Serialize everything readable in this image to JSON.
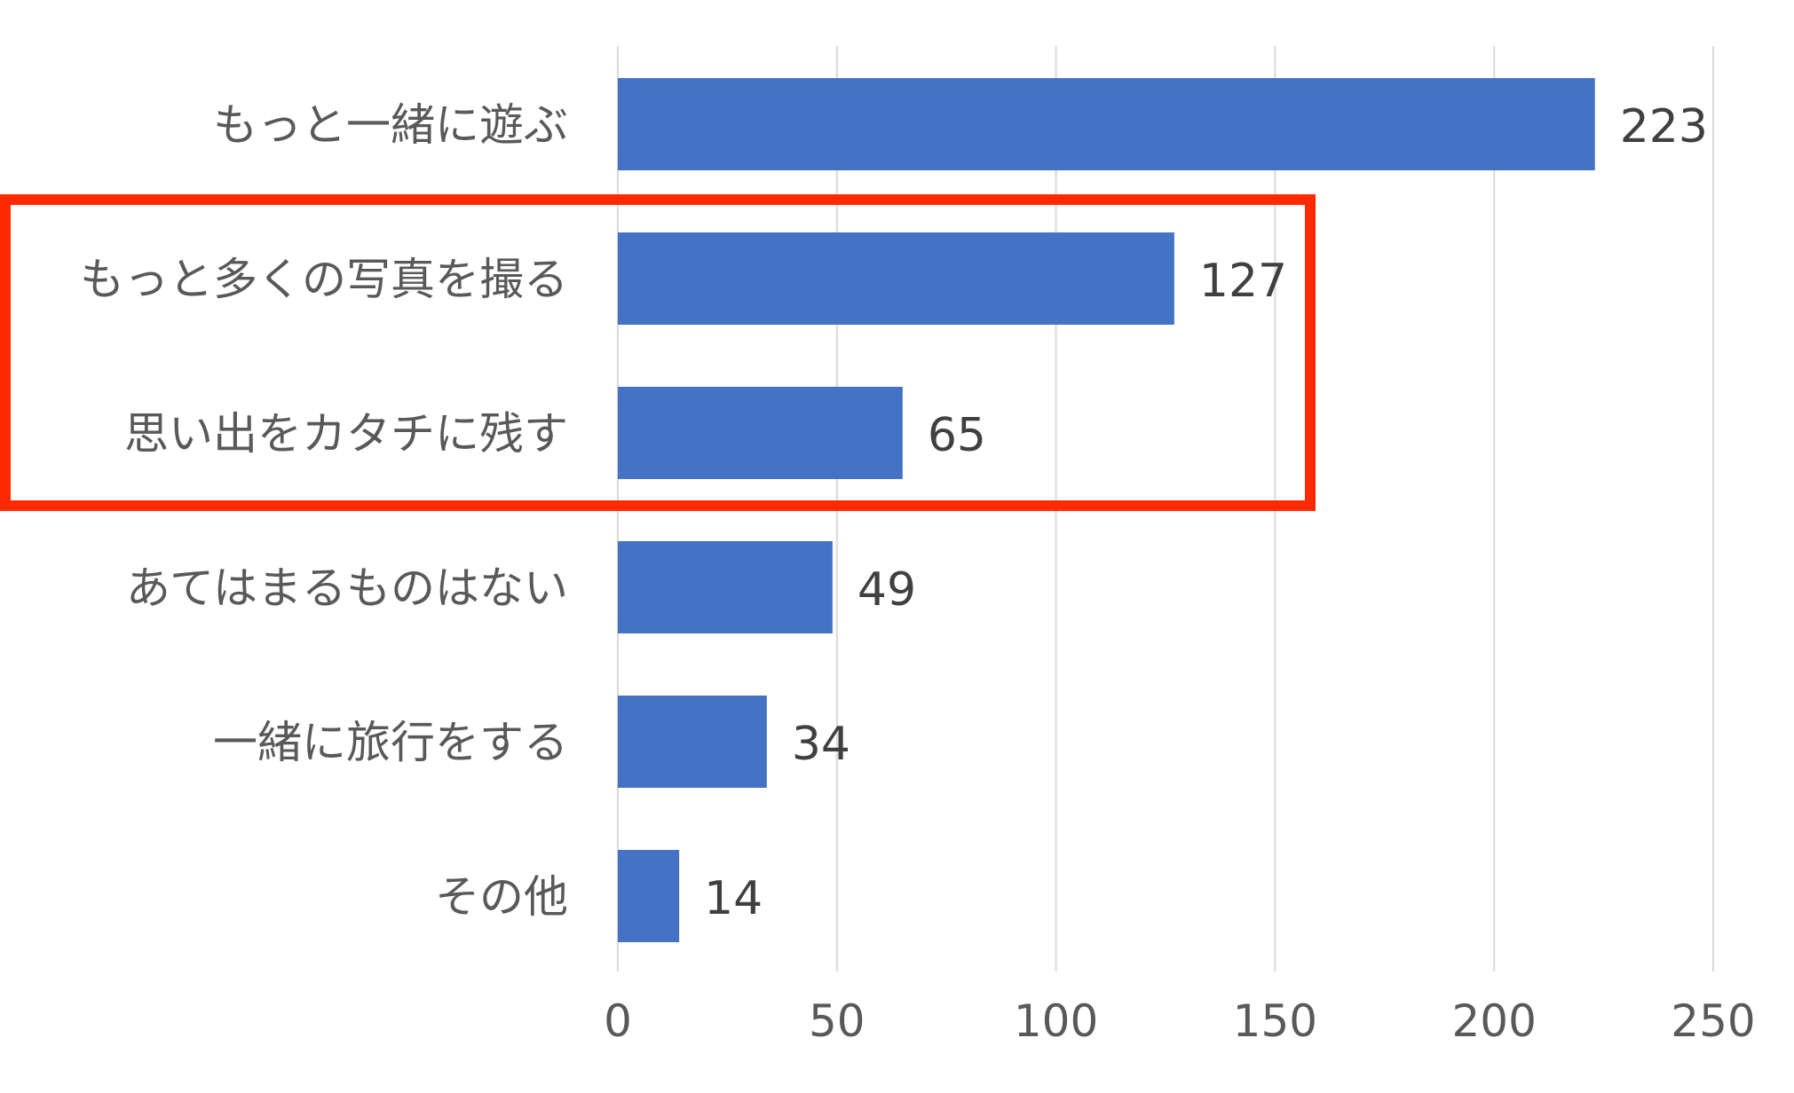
{
  "chart_data": {
    "type": "bar",
    "orientation": "horizontal",
    "categories": [
      "もっと一緒に遊ぶ",
      "もっと多くの写真を撮る",
      "思い出をカタチに残す",
      "あてはまるものはない",
      "一緒に旅行をする",
      "その他"
    ],
    "values": [
      223,
      127,
      65,
      49,
      34,
      14
    ],
    "xlim": [
      0,
      250
    ],
    "xticks": [
      "0",
      "50",
      "100",
      "150",
      "200",
      "250"
    ],
    "grid": true,
    "data_labels": true,
    "highlight_categories": [
      "もっと多くの写真を撮る",
      "思い出をカタチに残す"
    ],
    "colors": {
      "bar": "#4472C4",
      "highlight_box": "#FF2A00",
      "grid": "#D9D9D9",
      "text": "#595959"
    }
  }
}
